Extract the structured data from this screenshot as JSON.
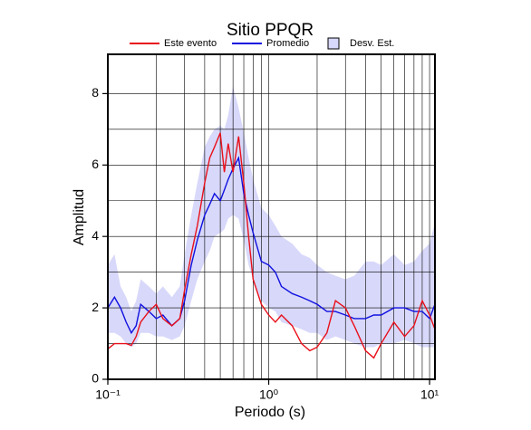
{
  "chart_data": {
    "type": "line",
    "title": "Sitio PPQR",
    "xlabel": "Periodo (s)",
    "ylabel": "Amplitud",
    "xscale": "log",
    "grid": true,
    "xlim": [
      0.1,
      10.8
    ],
    "ylim": [
      0,
      9.1
    ],
    "xticks": [
      {
        "value": 0.1,
        "label": "10⁻¹"
      },
      {
        "value": 1,
        "label": "10⁰"
      },
      {
        "value": 10,
        "label": "10¹"
      }
    ],
    "xminorticks": [
      0.2,
      0.3,
      0.4,
      0.5,
      0.6,
      0.7,
      0.8,
      0.9,
      2,
      3,
      4,
      5,
      6,
      7,
      8,
      9
    ],
    "yticks": [
      0,
      2,
      4,
      6,
      8
    ],
    "yminorticks": [
      1,
      3,
      5,
      7
    ],
    "x": [
      0.1,
      0.11,
      0.12,
      0.13,
      0.14,
      0.15,
      0.16,
      0.18,
      0.2,
      0.22,
      0.25,
      0.28,
      0.3,
      0.33,
      0.36,
      0.4,
      0.43,
      0.46,
      0.5,
      0.53,
      0.56,
      0.6,
      0.65,
      0.7,
      0.75,
      0.8,
      0.9,
      1.0,
      1.1,
      1.2,
      1.4,
      1.6,
      1.8,
      2.0,
      2.3,
      2.6,
      3.0,
      3.4,
      4.0,
      4.5,
      5,
      6,
      7,
      8,
      9,
      10,
      10.8
    ],
    "band": {
      "name": "Desv. Est.",
      "color": "#d8d8fa",
      "upper": [
        3.2,
        3.5,
        2.6,
        2.3,
        1.9,
        2.2,
        2.8,
        2.6,
        2.4,
        2.6,
        2.3,
        2.6,
        3.5,
        4.6,
        5.5,
        6.5,
        6.8,
        7.0,
        7.1,
        7.0,
        7.4,
        8.2,
        7.6,
        6.9,
        6.2,
        5.6,
        4.8,
        4.6,
        4.3,
        4.0,
        3.8,
        3.5,
        3.4,
        3.2,
        3.0,
        2.9,
        2.8,
        2.9,
        3.3,
        3.3,
        3.2,
        3.5,
        3.2,
        3.3,
        3.6,
        3.8,
        4.4
      ],
      "lower": [
        1.3,
        1.3,
        1.2,
        1.0,
        0.9,
        1.0,
        1.3,
        1.3,
        1.2,
        1.2,
        1.1,
        1.2,
        1.5,
        2.2,
        2.8,
        3.3,
        3.6,
        4.0,
        4.1,
        4.2,
        4.5,
        4.6,
        4.5,
        3.9,
        3.2,
        2.8,
        2.2,
        2.0,
        1.9,
        1.6,
        1.5,
        1.4,
        1.3,
        1.3,
        1.1,
        1.2,
        1.1,
        1.0,
        0.9,
        0.9,
        1.0,
        1.0,
        1.1,
        1.0,
        0.9,
        0.9,
        0.9
      ]
    },
    "series": [
      {
        "name": "Este evento",
        "color": "#e8101a",
        "values": [
          0.85,
          1.0,
          1.0,
          1.0,
          0.95,
          1.2,
          1.6,
          1.9,
          2.1,
          1.7,
          1.5,
          1.7,
          2.5,
          3.5,
          4.3,
          5.5,
          6.2,
          6.5,
          6.9,
          5.8,
          6.6,
          5.8,
          6.8,
          5.5,
          4.0,
          2.8,
          2.1,
          1.8,
          1.6,
          1.8,
          1.5,
          1.0,
          0.8,
          0.9,
          1.3,
          2.2,
          2.0,
          1.5,
          0.8,
          0.6,
          1.0,
          1.6,
          1.2,
          1.5,
          2.2,
          1.8,
          1.4
        ]
      },
      {
        "name": "Promedio",
        "color": "#1010e0",
        "values": [
          2.0,
          2.3,
          2.0,
          1.6,
          1.3,
          1.5,
          2.1,
          1.9,
          1.7,
          1.8,
          1.5,
          1.7,
          2.2,
          3.2,
          3.9,
          4.6,
          4.9,
          5.2,
          5.0,
          5.3,
          5.6,
          5.9,
          6.2,
          5.2,
          4.6,
          4.1,
          3.3,
          3.2,
          3.0,
          2.6,
          2.4,
          2.3,
          2.2,
          2.1,
          1.9,
          1.9,
          1.8,
          1.7,
          1.7,
          1.8,
          1.8,
          2.0,
          2.0,
          1.9,
          1.9,
          1.7,
          2.1
        ]
      }
    ]
  }
}
